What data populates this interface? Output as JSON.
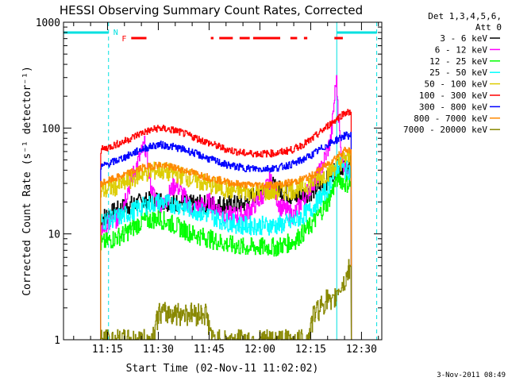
{
  "chart_data": {
    "type": "line",
    "title": "HESSI Observing Summary Count Rates, Corrected",
    "xlabel": "Start Time (02-Nov-11 11:02:02)",
    "ylabel": "Corrected Count Rate (s⁻¹ detector⁻¹)",
    "y_scale": "log",
    "ylim": [
      1,
      1000
    ],
    "xlim_minutes": [
      2,
      42
    ],
    "y_tick_labels": [
      "1",
      "10",
      "100",
      "1000"
    ],
    "x_ticks": [
      {
        "label": "11:15",
        "minute": 15
      },
      {
        "label": "11:30",
        "minute": 30
      },
      {
        "label": "11:45",
        "minute": 45
      },
      {
        "label": "12:00",
        "minute": 60
      },
      {
        "label": "12:15",
        "minute": 75
      },
      {
        "label": "12:30",
        "minute": 90
      }
    ],
    "legend_header": [
      "Det 1,3,4,5,6,",
      "Att 0"
    ],
    "legend_placement": "right",
    "footer_date": "3-Nov-2011 08:49",
    "flag_labels": {
      "night": "N",
      "flare": "F"
    },
    "night_lines_minute": [
      15.3,
      82.7
    ],
    "saa_lines_minute": [
      2,
      94.5
    ],
    "night_bar_minutes": [
      [
        2,
        15.3
      ],
      [
        82.7,
        94.5
      ]
    ],
    "flare_segments_minutes": [
      [
        22,
        26.5
      ],
      [
        45.5,
        46.3
      ],
      [
        48,
        52
      ],
      [
        54,
        57
      ],
      [
        58,
        66
      ],
      [
        69,
        71
      ],
      [
        73,
        74
      ],
      [
        82,
        84.5
      ]
    ],
    "data_window_minutes": [
      13,
      87
    ],
    "series": [
      {
        "name": "3 - 6 keV",
        "color": "#000000",
        "x": [
          13,
          20,
          25,
          30,
          33,
          40,
          48,
          55,
          60,
          64,
          70,
          75,
          79,
          82,
          85,
          87
        ],
        "y": [
          14,
          18,
          20,
          21,
          20,
          19,
          19,
          19,
          26,
          28,
          22,
          25,
          30,
          40,
          45,
          45
        ]
      },
      {
        "name": "6 - 12 keV",
        "color": "#ff00ff",
        "x": [
          13,
          18,
          23,
          26,
          28,
          31,
          35,
          40,
          45,
          50,
          55,
          60,
          63,
          66,
          70,
          74,
          78,
          81,
          82.5,
          84,
          87
        ],
        "y": [
          11,
          14,
          40,
          70,
          25,
          18,
          30,
          17,
          20,
          15,
          15,
          21,
          32,
          18,
          15,
          25,
          40,
          80,
          300,
          50,
          40
        ]
      },
      {
        "name": "12 - 25 keV",
        "color": "#00ff00",
        "x": [
          13,
          20,
          25,
          30,
          35,
          40,
          45,
          50,
          55,
          60,
          65,
          70,
          75,
          80,
          83,
          85,
          87
        ],
        "y": [
          8,
          10,
          13,
          14,
          12,
          10,
          9,
          8,
          7.5,
          7.5,
          7.5,
          8.5,
          12,
          20,
          35,
          30,
          30
        ]
      },
      {
        "name": "25 - 50 keV",
        "color": "#00ffff",
        "x": [
          13,
          20,
          25,
          30,
          35,
          40,
          45,
          50,
          55,
          60,
          65,
          70,
          75,
          80,
          83,
          85,
          87
        ],
        "y": [
          13,
          15,
          18,
          20,
          19,
          17,
          15,
          13,
          12,
          12,
          12,
          13,
          17,
          27,
          45,
          40,
          40
        ]
      },
      {
        "name": "50 - 100 keV",
        "color": "#ddcc00",
        "x": [
          13,
          20,
          25,
          30,
          35,
          40,
          45,
          50,
          55,
          60,
          65,
          70,
          75,
          80,
          85,
          87
        ],
        "y": [
          25,
          30,
          37,
          40,
          37,
          33,
          29,
          26,
          25,
          25,
          25,
          26,
          30,
          38,
          52,
          52
        ]
      },
      {
        "name": "100 - 300 keV",
        "color": "#ff0000",
        "x": [
          13,
          20,
          25,
          30,
          35,
          40,
          45,
          50,
          55,
          60,
          65,
          70,
          75,
          80,
          85,
          87
        ],
        "y": [
          62,
          75,
          90,
          100,
          95,
          83,
          72,
          63,
          58,
          57,
          58,
          63,
          77,
          105,
          140,
          140
        ]
      },
      {
        "name": "300 - 800 keV",
        "color": "#0000ff",
        "x": [
          13,
          20,
          25,
          30,
          35,
          40,
          45,
          50,
          55,
          60,
          65,
          70,
          75,
          80,
          85,
          87
        ],
        "y": [
          43,
          53,
          63,
          70,
          66,
          59,
          51,
          45,
          42,
          41,
          42,
          46,
          55,
          70,
          85,
          85
        ]
      },
      {
        "name": "800 - 7000 keV",
        "color": "#ff8800",
        "x": [
          13,
          20,
          25,
          30,
          35,
          40,
          45,
          50,
          55,
          60,
          65,
          70,
          75,
          80,
          85,
          87
        ],
        "y": [
          30,
          36,
          42,
          45,
          42,
          38,
          34,
          31,
          29,
          29,
          29,
          31,
          35,
          46,
          62,
          62
        ]
      },
      {
        "name": "7000 - 20000 keV",
        "color": "#888800",
        "x": [
          13,
          28,
          30,
          44,
          46,
          74,
          76,
          80,
          81,
          83,
          85,
          86.5,
          87
        ],
        "y": [
          1,
          1,
          1.8,
          1.8,
          1,
          1,
          1.8,
          2.5,
          2,
          3,
          3.5,
          5,
          4
        ]
      }
    ]
  }
}
